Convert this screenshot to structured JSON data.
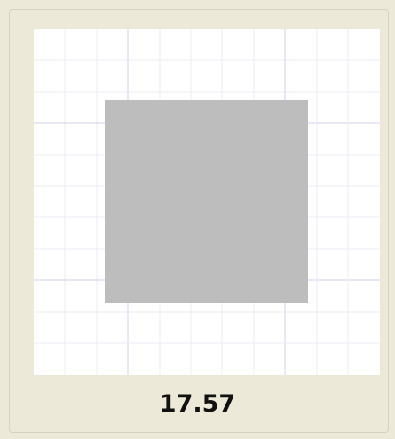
{
  "label": "17.57"
}
